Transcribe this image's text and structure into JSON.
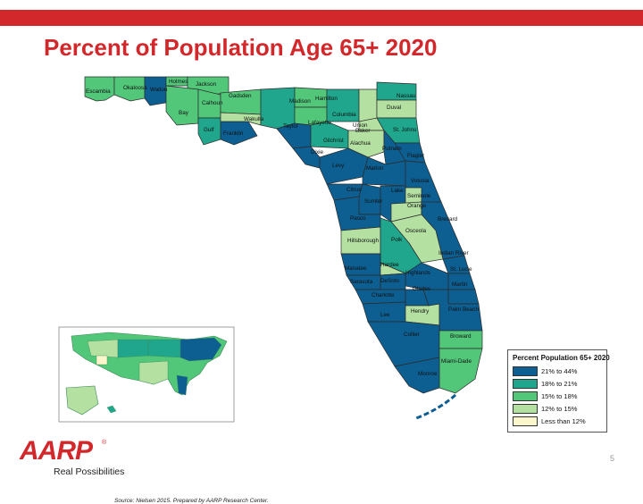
{
  "slide": {
    "title": "Percent of Population Age 65+ 2020",
    "source": "Source: Nielsen 2015. Prepared by AARP Research Center.",
    "page_number": "5"
  },
  "logo": {
    "text": "AARP",
    "registered": "®",
    "tagline": "Real Possibilities"
  },
  "colors": {
    "accent_red": "#d3282b",
    "bin_21_44": "#0d5e91",
    "bin_18_21": "#1fa68c",
    "bin_15_18": "#52c77a",
    "bin_12_15": "#b4e0a2",
    "bin_lt_12": "#fbf6cc"
  },
  "legend": {
    "title": "Percent Population 65+ 2020",
    "items": [
      {
        "label": "21% to 44%",
        "color": "#0d5e91"
      },
      {
        "label": "18% to 21%",
        "color": "#1fa68c"
      },
      {
        "label": "15% to 18%",
        "color": "#52c77a"
      },
      {
        "label": "12% to 15%",
        "color": "#b4e0a2"
      },
      {
        "label": "Less than 12%",
        "color": "#fbf6cc"
      }
    ]
  },
  "map": {
    "counties": [
      {
        "name": "Escambia",
        "bin": "15% to 18%"
      },
      {
        "name": "Okaloosa",
        "bin": "15% to 18%"
      },
      {
        "name": "Holmes",
        "bin": "15% to 18%"
      },
      {
        "name": "Jackson",
        "bin": "15% to 18%"
      },
      {
        "name": "Walton",
        "bin": "21% to 44%"
      },
      {
        "name": "Bay",
        "bin": "15% to 18%"
      },
      {
        "name": "Calhoun",
        "bin": "15% to 18%"
      },
      {
        "name": "Gadsden",
        "bin": "15% to 18%"
      },
      {
        "name": "Wakulla",
        "bin": "12% to 15%"
      },
      {
        "name": "Gulf",
        "bin": "18% to 21%"
      },
      {
        "name": "Franklin",
        "bin": "21% to 44%"
      },
      {
        "name": "Madison",
        "bin": "18% to 21%"
      },
      {
        "name": "Hamilton",
        "bin": "15% to 18%"
      },
      {
        "name": "Nassau",
        "bin": "18% to 21%"
      },
      {
        "name": "Baker",
        "bin": "12% to 15%"
      },
      {
        "name": "Duval",
        "bin": "12% to 15%"
      },
      {
        "name": "Columbia",
        "bin": "18% to 21%"
      },
      {
        "name": "Taylor",
        "bin": "21% to 44%"
      },
      {
        "name": "Lafayette",
        "bin": "15% to 18%"
      },
      {
        "name": "Union",
        "bin": "12% to 15%"
      },
      {
        "name": "St. Johns",
        "bin": "18% to 21%"
      },
      {
        "name": "Gilchrist",
        "bin": "18% to 21%"
      },
      {
        "name": "Alachua",
        "bin": "12% to 15%"
      },
      {
        "name": "Putnam",
        "bin": "21% to 44%"
      },
      {
        "name": "Dixie",
        "bin": "21% to 44%"
      },
      {
        "name": "Flagler",
        "bin": "21% to 44%"
      },
      {
        "name": "Levy",
        "bin": "21% to 44%"
      },
      {
        "name": "Marion",
        "bin": "21% to 44%"
      },
      {
        "name": "Volusia",
        "bin": "21% to 44%"
      },
      {
        "name": "Citrus",
        "bin": "21% to 44%"
      },
      {
        "name": "Lake",
        "bin": "21% to 44%"
      },
      {
        "name": "Seminole",
        "bin": "12% to 15%"
      },
      {
        "name": "Sumter",
        "bin": "21% to 44%"
      },
      {
        "name": "Orange",
        "bin": "12% to 15%"
      },
      {
        "name": "Pasco",
        "bin": "21% to 44%"
      },
      {
        "name": "Brevard",
        "bin": "21% to 44%"
      },
      {
        "name": "Osceola",
        "bin": "12% to 15%"
      },
      {
        "name": "Hillsborough",
        "bin": "12% to 15%"
      },
      {
        "name": "Polk",
        "bin": "18% to 21%"
      },
      {
        "name": "Indian River",
        "bin": "21% to 44%"
      },
      {
        "name": "Hardee",
        "bin": "12% to 15%"
      },
      {
        "name": "Manatee",
        "bin": "21% to 44%"
      },
      {
        "name": "Highlands",
        "bin": "21% to 44%"
      },
      {
        "name": "St. Lucie",
        "bin": "21% to 44%"
      },
      {
        "name": "DeSoto",
        "bin": "21% to 44%"
      },
      {
        "name": "Sarasota",
        "bin": "21% to 44%"
      },
      {
        "name": "Martin",
        "bin": "21% to 44%"
      },
      {
        "name": "Glades",
        "bin": "21% to 44%"
      },
      {
        "name": "Charlotte",
        "bin": "21% to 44%"
      },
      {
        "name": "Palm Beach",
        "bin": "21% to 44%"
      },
      {
        "name": "Lee",
        "bin": "21% to 44%"
      },
      {
        "name": "Hendry",
        "bin": "12% to 15%"
      },
      {
        "name": "Collier",
        "bin": "21% to 44%"
      },
      {
        "name": "Broward",
        "bin": "15% to 18%"
      },
      {
        "name": "Miami-Dade",
        "bin": "15% to 18%"
      },
      {
        "name": "Monroe",
        "bin": "21% to 44%"
      }
    ]
  }
}
